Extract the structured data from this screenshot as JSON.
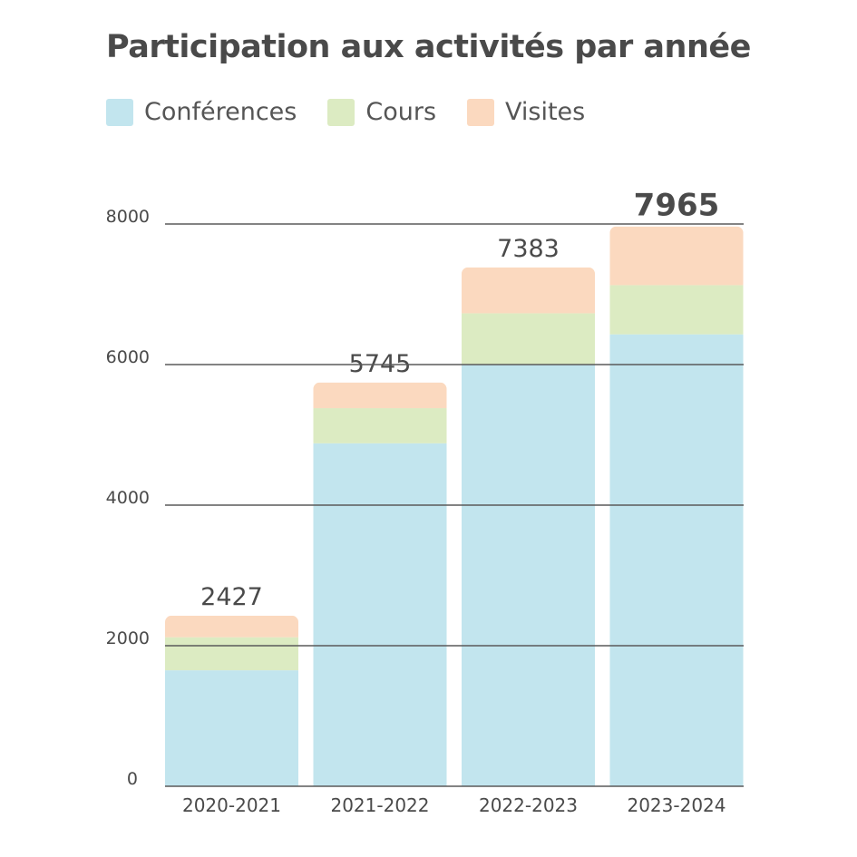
{
  "chart_data": {
    "type": "bar",
    "stacked": true,
    "title": "Participation aux activités par année",
    "categories": [
      "2020-2021",
      "2021-2022",
      "2022-2023",
      "2023-2024"
    ],
    "series": [
      {
        "name": "Conférences",
        "color": "#c2e5ee",
        "values": [
          1650,
          4880,
          6000,
          6430
        ]
      },
      {
        "name": "Cours",
        "color": "#dcebc2",
        "values": [
          470,
          500,
          730,
          700
        ]
      },
      {
        "name": "Visites",
        "color": "#fbd9bf",
        "values": [
          307,
          365,
          653,
          835
        ]
      }
    ],
    "totals": [
      "2427",
      "5745",
      "7383",
      "7965"
    ],
    "highlight_total_index": 3,
    "yticks": [
      0,
      2000,
      4000,
      6000,
      8000
    ],
    "ytick_labels": [
      "0",
      "2000",
      "4000",
      "6000",
      "8000"
    ],
    "ylim": [
      0,
      8000
    ],
    "xlabel": "",
    "ylabel": "",
    "grid": true,
    "legend_position": "top-left"
  }
}
